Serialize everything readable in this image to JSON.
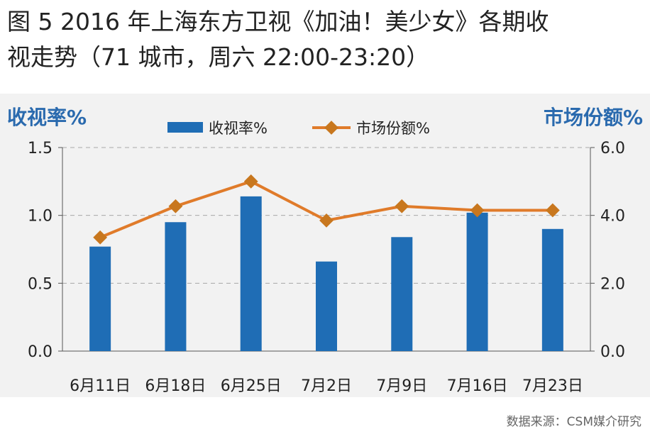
{
  "title": {
    "line1": "图 5  2016 年上海东方卫视《加油！美少女》各期收",
    "line2": "视走势（71 城市，周六 22:00-23:20）"
  },
  "source": "数据来源：CSM媒介研究",
  "colors": {
    "bar": "#1f6db5",
    "line": "#e07b2a",
    "marker": "#c8771e",
    "axis_title": "#2a6aae"
  },
  "chart_data": {
    "type": "bar+line",
    "categories": [
      "6月11日",
      "6月18日",
      "6月25日",
      "7月2日",
      "7月9日",
      "7月16日",
      "7月23日"
    ],
    "left_axis": {
      "title": "收视率%",
      "ylim": [
        0,
        1.5
      ],
      "ticks": [
        "0.0",
        "0.5",
        "1.0",
        "1.5"
      ]
    },
    "right_axis": {
      "title": "市场份额%",
      "ylim": [
        0,
        6
      ],
      "ticks": [
        "0.0",
        "2.0",
        "4.0",
        "6.0"
      ]
    },
    "series": [
      {
        "name": "收视率%",
        "type": "bar",
        "axis": "left",
        "values": [
          0.77,
          0.95,
          1.14,
          0.66,
          0.84,
          1.02,
          0.9
        ]
      },
      {
        "name": "市场份额%",
        "type": "line",
        "axis": "right",
        "values": [
          3.35,
          4.27,
          5.0,
          3.85,
          4.27,
          4.15,
          4.15
        ]
      }
    ],
    "grid": "horizontal-dashed",
    "legend": "top-center"
  }
}
